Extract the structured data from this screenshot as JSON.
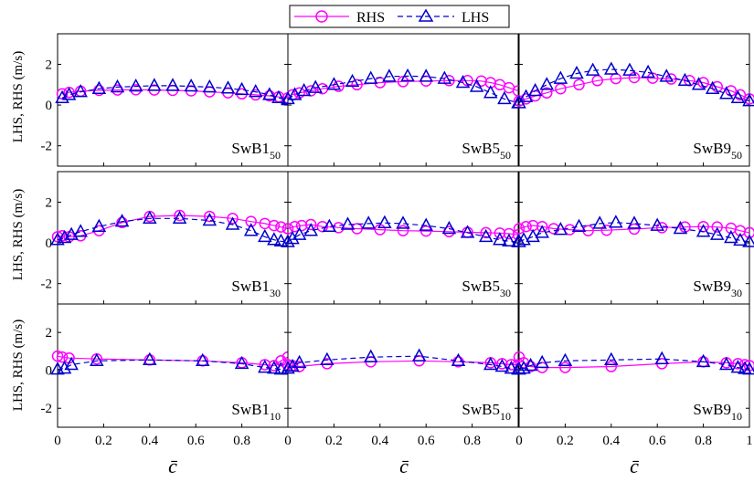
{
  "chart_data": {
    "type": "line",
    "legend": {
      "position": "top",
      "entries": [
        {
          "label": "RHS",
          "color": "#ff00ff",
          "style": "solid",
          "marker": "circle"
        },
        {
          "label": "LHS",
          "color": "#0000cc",
          "style": "dashed",
          "marker": "triangle"
        }
      ]
    },
    "xlabel": "c̄",
    "ylabel": "LHS, RHS (m/s)",
    "xlim": [
      0,
      1
    ],
    "ylim": [
      -3,
      3.5
    ],
    "xticks": [
      "0",
      "0.2",
      "0.4",
      "0.6",
      "0.8",
      "1"
    ],
    "yticks": [
      "-2",
      "0",
      "2"
    ],
    "grid": false,
    "panels": [
      {
        "label": "SwB1",
        "sub": "50",
        "rhs": {
          "x": [
            0.02,
            0.05,
            0.1,
            0.18,
            0.26,
            0.34,
            0.42,
            0.5,
            0.58,
            0.66,
            0.74,
            0.8,
            0.86,
            0.92,
            0.96,
            1.0
          ],
          "y": [
            0.55,
            0.62,
            0.68,
            0.72,
            0.74,
            0.75,
            0.74,
            0.72,
            0.7,
            0.65,
            0.6,
            0.55,
            0.5,
            0.45,
            0.4,
            0.35
          ]
        },
        "lhs": {
          "x": [
            0.02,
            0.05,
            0.1,
            0.18,
            0.26,
            0.34,
            0.42,
            0.5,
            0.58,
            0.66,
            0.74,
            0.8,
            0.86,
            0.92,
            0.96,
            1.0
          ],
          "y": [
            0.35,
            0.5,
            0.65,
            0.8,
            0.88,
            0.92,
            0.95,
            0.95,
            0.92,
            0.88,
            0.82,
            0.75,
            0.65,
            0.5,
            0.35,
            0.25
          ]
        }
      },
      {
        "label": "SwB5",
        "sub": "50",
        "rhs": {
          "x": [
            0.02,
            0.05,
            0.1,
            0.15,
            0.22,
            0.3,
            0.4,
            0.5,
            0.6,
            0.7,
            0.78,
            0.84,
            0.88,
            0.92,
            0.96,
            1.0
          ],
          "y": [
            0.5,
            0.6,
            0.7,
            0.8,
            0.92,
            1.0,
            1.1,
            1.15,
            1.18,
            1.2,
            1.2,
            1.18,
            1.1,
            1.0,
            0.85,
            0.7
          ]
        },
        "lhs": {
          "x": [
            0.0,
            0.03,
            0.07,
            0.12,
            0.2,
            0.28,
            0.36,
            0.44,
            0.52,
            0.6,
            0.68,
            0.76,
            0.82,
            0.88,
            0.94,
            1.0
          ],
          "y": [
            0.3,
            0.5,
            0.7,
            0.85,
            1.0,
            1.15,
            1.3,
            1.4,
            1.42,
            1.4,
            1.3,
            1.1,
            0.9,
            0.6,
            0.3,
            0.1
          ]
        }
      },
      {
        "label": "SwB9",
        "sub": "50",
        "rhs": {
          "x": [
            0.0,
            0.03,
            0.07,
            0.12,
            0.18,
            0.26,
            0.34,
            0.42,
            0.5,
            0.58,
            0.66,
            0.74,
            0.8,
            0.86,
            0.92,
            0.96,
            1.0
          ],
          "y": [
            0.2,
            0.3,
            0.45,
            0.6,
            0.8,
            1.0,
            1.2,
            1.3,
            1.35,
            1.32,
            1.28,
            1.2,
            1.1,
            0.9,
            0.7,
            0.5,
            0.3
          ]
        },
        "lhs": {
          "x": [
            0.0,
            0.03,
            0.07,
            0.12,
            0.18,
            0.25,
            0.32,
            0.4,
            0.48,
            0.56,
            0.64,
            0.72,
            0.78,
            0.84,
            0.9,
            0.95,
            1.0
          ],
          "y": [
            0.1,
            0.4,
            0.7,
            1.0,
            1.3,
            1.55,
            1.7,
            1.75,
            1.7,
            1.6,
            1.4,
            1.2,
            1.0,
            0.8,
            0.55,
            0.35,
            0.2
          ]
        }
      },
      {
        "label": "SwB1",
        "sub": "30",
        "rhs": {
          "x": [
            0.0,
            0.02,
            0.05,
            0.1,
            0.18,
            0.28,
            0.4,
            0.53,
            0.66,
            0.76,
            0.84,
            0.9,
            0.94,
            0.97,
            1.0
          ],
          "y": [
            0.3,
            0.35,
            0.3,
            0.35,
            0.6,
            1.0,
            1.3,
            1.35,
            1.3,
            1.2,
            1.05,
            0.95,
            0.85,
            0.78,
            0.7
          ]
        },
        "lhs": {
          "x": [
            0.0,
            0.03,
            0.06,
            0.1,
            0.18,
            0.28,
            0.4,
            0.53,
            0.66,
            0.76,
            0.84,
            0.9,
            0.94,
            0.97,
            1.0
          ],
          "y": [
            0.15,
            0.25,
            0.4,
            0.55,
            0.8,
            1.05,
            1.2,
            1.2,
            1.1,
            0.9,
            0.6,
            0.3,
            0.15,
            0.08,
            0.05
          ]
        }
      },
      {
        "label": "SwB5",
        "sub": "30",
        "rhs": {
          "x": [
            0.0,
            0.03,
            0.06,
            0.1,
            0.15,
            0.22,
            0.3,
            0.4,
            0.5,
            0.6,
            0.7,
            0.78,
            0.86,
            0.92,
            0.96,
            1.0
          ],
          "y": [
            0.7,
            0.8,
            0.85,
            0.9,
            0.8,
            0.75,
            0.7,
            0.65,
            0.6,
            0.58,
            0.55,
            0.52,
            0.5,
            0.48,
            0.45,
            0.4
          ]
        },
        "lhs": {
          "x": [
            0.0,
            0.02,
            0.05,
            0.1,
            0.18,
            0.26,
            0.35,
            0.42,
            0.5,
            0.6,
            0.7,
            0.78,
            0.86,
            0.92,
            0.96,
            1.0
          ],
          "y": [
            0.05,
            0.2,
            0.4,
            0.6,
            0.8,
            0.9,
            0.95,
            0.98,
            0.95,
            0.85,
            0.7,
            0.5,
            0.3,
            0.15,
            0.08,
            0.05
          ]
        }
      },
      {
        "label": "SwB9",
        "sub": "30",
        "rhs": {
          "x": [
            0.0,
            0.03,
            0.06,
            0.1,
            0.15,
            0.22,
            0.3,
            0.38,
            0.5,
            0.62,
            0.72,
            0.8,
            0.86,
            0.92,
            0.96,
            1.0
          ],
          "y": [
            0.7,
            0.8,
            0.85,
            0.8,
            0.7,
            0.65,
            0.6,
            0.62,
            0.68,
            0.75,
            0.78,
            0.8,
            0.78,
            0.72,
            0.6,
            0.5
          ]
        },
        "lhs": {
          "x": [
            0.0,
            0.02,
            0.06,
            0.1,
            0.18,
            0.26,
            0.35,
            0.42,
            0.5,
            0.6,
            0.7,
            0.8,
            0.86,
            0.92,
            0.96,
            1.0
          ],
          "y": [
            0.05,
            0.15,
            0.3,
            0.5,
            0.65,
            0.8,
            0.95,
            1.0,
            0.95,
            0.85,
            0.7,
            0.55,
            0.4,
            0.25,
            0.12,
            0.05
          ]
        }
      },
      {
        "label": "SwB1",
        "sub": "10",
        "rhs": {
          "x": [
            0.0,
            0.02,
            0.05,
            0.17,
            0.4,
            0.63,
            0.8,
            0.9,
            0.94,
            0.97,
            1.0
          ],
          "y": [
            0.75,
            0.7,
            0.65,
            0.6,
            0.55,
            0.5,
            0.4,
            0.3,
            0.25,
            0.5,
            0.7
          ]
        },
        "lhs": {
          "x": [
            0.0,
            0.03,
            0.06,
            0.17,
            0.4,
            0.63,
            0.8,
            0.9,
            0.94,
            0.97,
            1.0
          ],
          "y": [
            0.05,
            0.1,
            0.3,
            0.5,
            0.55,
            0.5,
            0.35,
            0.15,
            0.1,
            0.05,
            0.05
          ]
        }
      },
      {
        "label": "SwB5",
        "sub": "10",
        "rhs": {
          "x": [
            0.0,
            0.02,
            0.05,
            0.17,
            0.36,
            0.57,
            0.74,
            0.88,
            0.93,
            0.97,
            1.0
          ],
          "y": [
            0.3,
            0.25,
            0.2,
            0.35,
            0.45,
            0.5,
            0.45,
            0.4,
            0.35,
            0.3,
            0.3
          ]
        },
        "lhs": {
          "x": [
            0.0,
            0.02,
            0.05,
            0.17,
            0.36,
            0.57,
            0.74,
            0.88,
            0.93,
            0.97,
            1.0
          ],
          "y": [
            0.1,
            0.2,
            0.4,
            0.55,
            0.7,
            0.75,
            0.5,
            0.3,
            0.2,
            0.1,
            0.05
          ]
        }
      },
      {
        "label": "SwB9",
        "sub": "10",
        "rhs": {
          "x": [
            0.0,
            0.02,
            0.05,
            0.1,
            0.2,
            0.4,
            0.62,
            0.8,
            0.9,
            0.95,
            0.98,
            1.0
          ],
          "y": [
            0.7,
            0.4,
            0.2,
            0.15,
            0.15,
            0.2,
            0.35,
            0.45,
            0.4,
            0.35,
            0.3,
            0.25
          ]
        },
        "lhs": {
          "x": [
            0.0,
            0.02,
            0.05,
            0.1,
            0.2,
            0.4,
            0.62,
            0.8,
            0.9,
            0.95,
            0.98,
            1.0
          ],
          "y": [
            0.05,
            0.1,
            0.25,
            0.4,
            0.5,
            0.55,
            0.6,
            0.45,
            0.3,
            0.15,
            0.08,
            0.05
          ]
        }
      }
    ]
  }
}
